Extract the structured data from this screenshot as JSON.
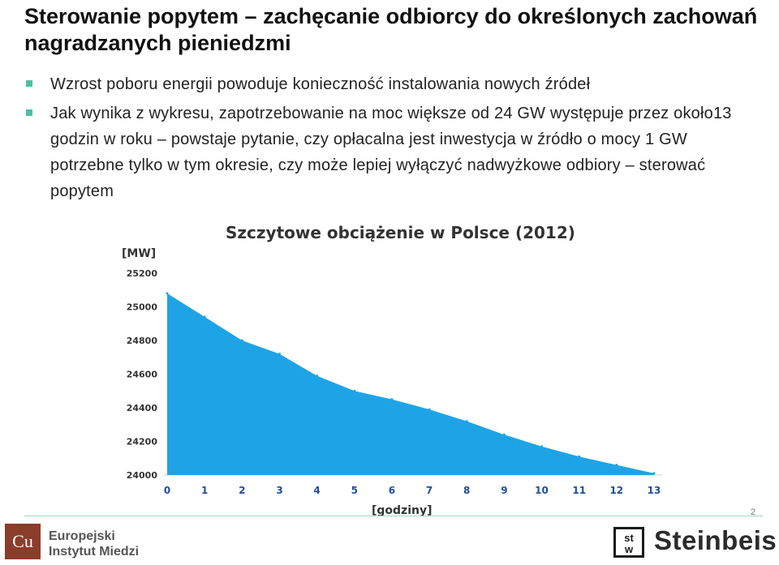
{
  "slide": {
    "title": "Sterowanie popytem – zachęcanie odbiorcy do określonych zachowań nagradzanych pieniedzmi",
    "bullets": [
      "Wzrost poboru energii powoduje konieczność instalowania nowych źródeł",
      "Jak wynika z wykresu, zapotrzebowanie na moc większe od 24 GW występuje przez około13 godzin w roku – powstaje pytanie, czy opłacalna jest inwestycja w źródło o mocy 1 GW potrzebne tylko w tym okresie, czy może lepiej wyłączyć nadwyżkowe odbiory – sterować popytem"
    ],
    "page_number": "2"
  },
  "chart_data": {
    "type": "area",
    "title": "Szczytowe obciążenie w Polsce (2012)",
    "ylabel": "[MW]",
    "xlabel": "[godziny]",
    "x": [
      0,
      1,
      2,
      3,
      4,
      5,
      6,
      7,
      8,
      9,
      10,
      11,
      12,
      13
    ],
    "y": [
      25080,
      24940,
      24800,
      24720,
      24590,
      24500,
      24450,
      24390,
      24320,
      24240,
      24170,
      24110,
      24060,
      24010
    ],
    "xlim": [
      0,
      13
    ],
    "ylim": [
      24000,
      25200
    ],
    "yticks": [
      24000,
      24200,
      24400,
      24600,
      24800,
      25000,
      25200
    ],
    "xticks": [
      "0",
      "1",
      "2",
      "3",
      "4",
      "5",
      "6",
      "7",
      "8",
      "9",
      "10",
      "11",
      "12",
      "13"
    ],
    "color": "#1ea4e6",
    "tick_color": "#1f4e9a"
  },
  "logos": {
    "left_mark": "Cu",
    "left_text_line1": "Europejski",
    "left_text_line2": "Instytut Miedzi",
    "right_mark_top": "st",
    "right_mark_bottom": "w",
    "right_text": "Steinbeis"
  },
  "colors": {
    "bullet": "#4dbfa0",
    "footer_line": "#9bd9c6",
    "eim_brand": "#8a3d2a"
  }
}
